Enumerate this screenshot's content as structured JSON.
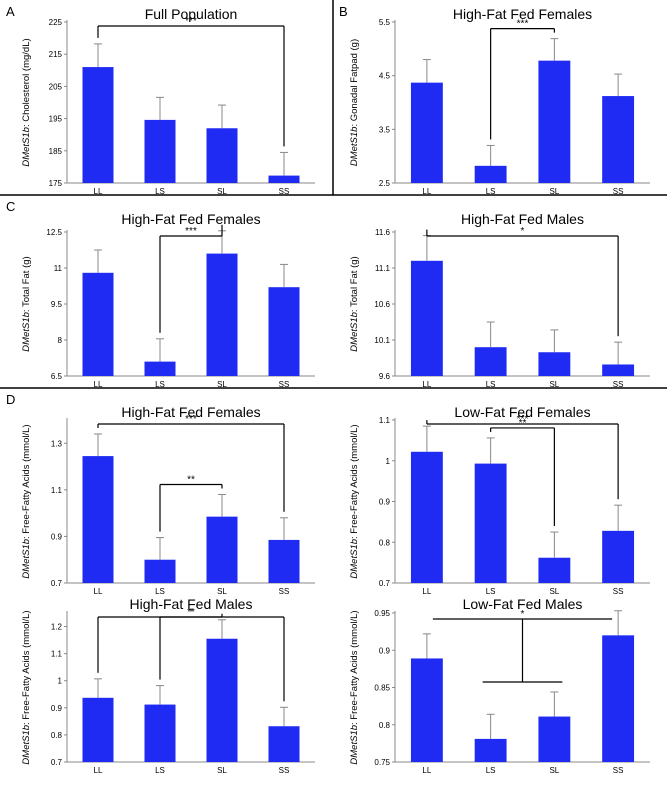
{
  "panel_letters": [
    "A",
    "B",
    "C",
    "D"
  ],
  "colors": {
    "bar": "#1f2bf2",
    "axis": "#888888",
    "line": "#000000"
  },
  "chart_data": [
    {
      "type": "bar",
      "title": "Full Population",
      "ylabel_italic": "DMetS1b",
      "ylabel_rest": ": Cholesterol (mg/dL)",
      "categories": [
        "LL",
        "LS",
        "SL",
        "SS"
      ],
      "values": [
        211,
        194.6,
        192,
        177.3
      ],
      "errors": [
        7.2,
        7.0,
        7.2,
        7.2
      ],
      "ylim": [
        175,
        225
      ],
      "yticks": [
        "175",
        "185",
        "195",
        "205",
        "215",
        "225"
      ],
      "significance": [
        {
          "from": 0,
          "to": 3,
          "label": "***"
        }
      ]
    },
    {
      "type": "bar",
      "title": "High-Fat Fed Females",
      "ylabel_italic": "DMetS1b",
      "ylabel_rest": ": Gonadal Fatpad (g)",
      "categories": [
        "LL",
        "LS",
        "SL",
        "SS"
      ],
      "values": [
        4.37,
        2.82,
        4.78,
        4.12
      ],
      "errors": [
        0.43,
        0.38,
        0.41,
        0.41
      ],
      "ylim": [
        2.5,
        5.5
      ],
      "yticks": [
        "2.5",
        "3.5",
        "4.5",
        "5.5"
      ],
      "significance": [
        {
          "from": 1,
          "to": 2,
          "label": "***"
        }
      ]
    },
    {
      "type": "bar",
      "title": "High-Fat Fed Females",
      "ylabel_italic": "DMetS1b",
      "ylabel_rest": ": Total Fat (g)",
      "categories": [
        "LL",
        "LS",
        "SL",
        "SS"
      ],
      "values": [
        10.8,
        7.1,
        11.6,
        10.2
      ],
      "errors": [
        0.95,
        0.95,
        0.95,
        0.95
      ],
      "ylim": [
        6.5,
        12.5
      ],
      "yticks": [
        "6.5",
        "8",
        "9.5",
        "11",
        "12.5"
      ],
      "significance": [
        {
          "from": 1,
          "to": 2,
          "label": "***"
        }
      ]
    },
    {
      "type": "bar",
      "title": "High-Fat Fed Males",
      "ylabel_italic": "DMetS1b",
      "ylabel_rest": ": Total Fat (g)",
      "categories": [
        "LL",
        "LS",
        "SL",
        "SS"
      ],
      "values": [
        11.2,
        10.0,
        9.93,
        9.76
      ],
      "errors": [
        0.35,
        0.35,
        0.31,
        0.31
      ],
      "ylim": [
        9.6,
        11.6
      ],
      "yticks": [
        "9.6",
        "10.1",
        "10.6",
        "11.1",
        "11.6"
      ],
      "significance": [
        {
          "from": 0,
          "to": 3,
          "label": "*"
        }
      ]
    },
    {
      "type": "bar",
      "title": "High-Fat Fed Females",
      "ylabel_italic": "DMetS1b",
      "ylabel_rest": ": Free-Fatty Acids (mmol/L)",
      "categories": [
        "LL",
        "LS",
        "SL",
        "SS"
      ],
      "values": [
        1.245,
        0.8,
        0.985,
        0.885
      ],
      "errors": [
        0.095,
        0.095,
        0.095,
        0.095
      ],
      "ylim": [
        0.7,
        1.4
      ],
      "yticks": [
        "0.7",
        "0.9",
        "1.1",
        "1.3"
      ],
      "significance": [
        {
          "from": 1,
          "to": 2,
          "label": "**"
        },
        {
          "from": 0,
          "to": 3,
          "label": "***"
        }
      ]
    },
    {
      "type": "bar",
      "title": "Low-Fat Fed Females",
      "ylabel_italic": "DMetS1b",
      "ylabel_rest": ": Free-Fatty Acids (mmol/L)",
      "categories": [
        "LL",
        "LS",
        "SL",
        "SS"
      ],
      "values": [
        1.022,
        0.993,
        0.762,
        0.828
      ],
      "errors": [
        0.063,
        0.063,
        0.063,
        0.063
      ],
      "ylim": [
        0.7,
        1.1
      ],
      "yticks": [
        "0.7",
        "0.8",
        "0.9",
        "1",
        "1.1"
      ],
      "significance": [
        {
          "from": 1,
          "to": 2,
          "label": "**"
        },
        {
          "from": 0,
          "to": 3,
          "label": "***"
        }
      ]
    },
    {
      "type": "bar",
      "title": "High-Fat Fed Males",
      "ylabel_italic": "DMetS1b",
      "ylabel_rest": ": Free-Fatty Acids (mmol/L)",
      "categories": [
        "LL",
        "LS",
        "SL",
        "SS"
      ],
      "values": [
        0.937,
        0.912,
        1.155,
        0.832
      ],
      "errors": [
        0.07,
        0.07,
        0.07,
        0.07
      ],
      "ylim": [
        0.7,
        1.25
      ],
      "yticks": [
        "0.7",
        "0.8",
        "0.9",
        "1",
        "1.1",
        "1.2"
      ],
      "significance": [
        {
          "from": 1,
          "to": 2,
          "label": "**"
        },
        {
          "from": 0,
          "to": 3,
          "label": "*"
        }
      ]
    },
    {
      "type": "bar",
      "title": "Low-Fat Fed Males",
      "ylabel_italic": "DMetS1b",
      "ylabel_rest": ": Free-Fatty Acids (mmol/L)",
      "categories": [
        "LL",
        "LS",
        "SL",
        "SS"
      ],
      "values": [
        0.889,
        0.781,
        0.811,
        0.92
      ],
      "errors": [
        0.033,
        0.033,
        0.033,
        0.033
      ],
      "ylim": [
        0.75,
        0.95
      ],
      "yticks": [
        "0.75",
        "0.8",
        "0.85",
        "0.9",
        "0.95"
      ],
      "significance": [
        {
          "group": [
            1,
            2
          ],
          "to": 3,
          "from": 0,
          "label": "*"
        }
      ]
    }
  ]
}
